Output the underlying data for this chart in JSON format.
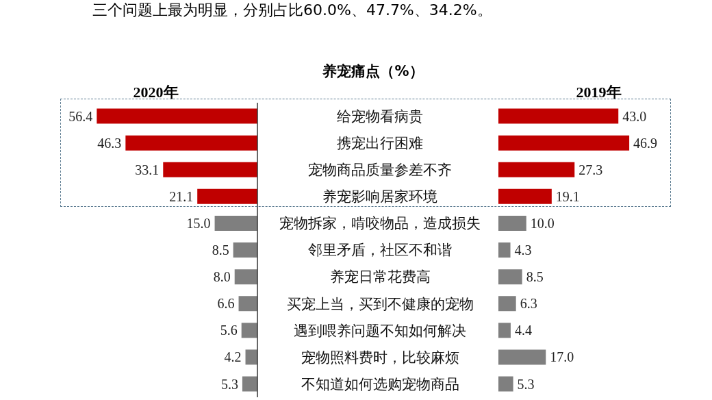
{
  "chart_data": [
    {
      "type": "bar",
      "orientation": "horizontal",
      "title": "2020年",
      "ylabel": "养宠痛点（%）",
      "annotations": [
        "三个问题上最为明显，分别占比60.0%、47.7%、34.2%。"
      ],
      "categories": [
        "给宠物看病贵",
        "携宠出行困难",
        "宠物商品质量参差不齐",
        "养宠影响居家环境",
        "宠物拆家，啃咬物品，造成损失",
        "邻里矛盾，社区不和谐",
        "养宠日常花费高",
        "买宠上当，买到不健康的宠物",
        "遇到喂养问题不知如何解决",
        "宠物照料费时，比较麻烦",
        "不知道如何选购宠物商品"
      ],
      "values": [
        56.4,
        46.3,
        33.1,
        21.1,
        15.0,
        8.5,
        8.0,
        6.6,
        5.6,
        4.2,
        5.3
      ],
      "value_labels": [
        "56.4",
        "46.3",
        "33.1",
        "21.1",
        "15.0",
        "8.5",
        "8.0",
        "6.6",
        "5.6",
        "4.2",
        "5.3"
      ],
      "colors": [
        "#c00000",
        "#c00000",
        "#c00000",
        "#c00000",
        "#7f7f7f",
        "#7f7f7f",
        "#7f7f7f",
        "#7f7f7f",
        "#7f7f7f",
        "#7f7f7f",
        "#7f7f7f"
      ],
      "tick_labels": "y"
    },
    {
      "type": "bar",
      "orientation": "horizontal",
      "title": "2019年",
      "categories": [
        null,
        null,
        null,
        null,
        null,
        null,
        null,
        null,
        null,
        null,
        null
      ],
      "values": [
        43.0,
        46.9,
        27.3,
        19.1,
        10.0,
        4.3,
        8.5,
        6.3,
        4.4,
        17.0,
        5.3
      ],
      "value_labels": [
        "43.0",
        "46.9",
        "27.3",
        "19.1",
        "10.0",
        "4.3",
        "8.5",
        "6.3",
        "4.4",
        "17.0",
        "5.3"
      ],
      "colors": [
        "#c00000",
        "#c00000",
        "#c00000",
        "#c00000",
        "#7f7f7f",
        "#7f7f7f",
        "#7f7f7f",
        "#7f7f7f",
        "#7f7f7f",
        "#7f7f7f",
        "#7f7f7f"
      ],
      "tick_labels": false
    }
  ]
}
